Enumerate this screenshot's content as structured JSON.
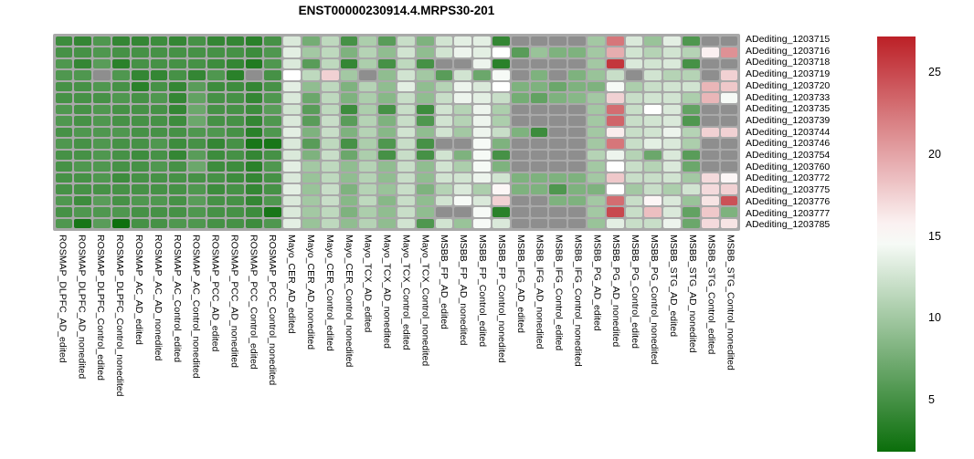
{
  "chart_data": {
    "type": "heatmap",
    "title": "ENST00000230914.4.MRPS30-201",
    "rows": [
      "ADediting_1203715",
      "ADediting_1203716",
      "ADediting_1203718",
      "ADediting_1203719",
      "ADediting_1203720",
      "ADediting_1203733",
      "ADediting_1203735",
      "ADediting_1203739",
      "ADediting_1203744",
      "ADediting_1203746",
      "ADediting_1203754",
      "ADediting_1203760",
      "ADediting_1203772",
      "ADediting_1203775",
      "ADediting_1203776",
      "ADediting_1203777",
      "ADediting_1203785"
    ],
    "columns": [
      "ROSMAP_DLPFC_AD_edited",
      "ROSMAP_DLPFC_AD_nonedited",
      "ROSMAP_DLPFC_Control_edited",
      "ROSMAP_DLPFC_Control_nonedited",
      "ROSMAP_AC_AD_edited",
      "ROSMAP_AC_AD_nonedited",
      "ROSMAP_AC_Control_edited",
      "ROSMAP_AC_Control_nonedited",
      "ROSMAP_PCC_AD_edited",
      "ROSMAP_PCC_AD_nonedited",
      "ROSMAP_PCC_Control_edited",
      "ROSMAP_PCC_Control_nonedited",
      "Mayo_CER_AD_edited",
      "Mayo_CER_AD_nonedited",
      "Mayo_CER_Control_edited",
      "Mayo_CER_Control_nonedited",
      "Mayo_TCX_AD_edited",
      "Mayo_TCX_AD_nonedited",
      "Mayo_TCX_Control_edited",
      "Mayo_TCX_Control_nonedited",
      "MSBB_FP_AD_edited",
      "MSBB_FP_AD_nonedited",
      "MSBB_FP_Control_edited",
      "MSBB_FP_Control_nonedited",
      "MSBB_IFG_AD_edited",
      "MSBB_IFG_AD_nonedited",
      "MSBB_IFG_Control_edited",
      "MSBB_IFG_Control_nonedited",
      "MSBB_PG_AD_edited",
      "MSBB_PG_AD_nonedited",
      "MSBB_PG_Control_edited",
      "MSBB_PG_Control_nonedited",
      "MSBB_STG_AD_edited",
      "MSBB_STG_AD_nonedited",
      "MSBB_STG_Control_edited",
      "MSBB_STG_Control_nonedited"
    ],
    "values": [
      [
        4.5,
        4,
        5.5,
        4,
        4,
        4.5,
        4,
        5,
        4,
        4,
        3.5,
        5,
        13,
        7.5,
        11.5,
        5,
        10.5,
        6,
        12,
        8,
        12.5,
        13.5,
        13.5,
        4,
        null,
        null,
        null,
        null,
        10,
        22.5,
        13,
        9.5,
        13.5,
        5.5,
        null,
        null
      ],
      [
        5,
        5,
        5.5,
        5,
        5,
        5,
        5,
        5,
        5,
        5,
        4.5,
        5.5,
        13.5,
        10,
        11.5,
        8,
        11,
        9,
        12.5,
        9,
        12.5,
        14,
        13.5,
        15,
        6,
        9.5,
        8,
        8,
        10,
        19.5,
        12.5,
        11,
        12.5,
        11,
        15.8,
        21
      ],
      [
        5.5,
        4,
        6,
        3.5,
        5,
        5,
        5,
        5,
        4.5,
        4,
        3,
        5.5,
        13,
        6,
        11.5,
        4,
        10.5,
        5,
        11.5,
        5,
        null,
        null,
        14,
        3.5,
        null,
        null,
        null,
        null,
        10,
        26,
        13,
        12.5,
        13,
        5,
        null,
        null
      ],
      [
        5.5,
        5.5,
        null,
        5.5,
        4,
        4,
        5,
        4,
        5.5,
        3.5,
        null,
        5,
        15,
        11.5,
        17.5,
        10,
        null,
        9,
        12.5,
        10,
        6,
        12.5,
        7,
        14.5,
        null,
        8,
        null,
        8,
        9.5,
        12,
        null,
        12.5,
        11,
        11,
        null,
        17.5
      ],
      [
        5,
        5,
        5.5,
        5,
        3.5,
        5,
        4,
        6,
        4.5,
        4.5,
        4,
        5,
        13.5,
        9,
        11.5,
        8,
        11,
        9,
        13.5,
        9,
        11,
        14,
        13,
        15,
        8,
        8,
        7,
        8,
        8,
        14.5,
        10.5,
        12,
        12.5,
        12.5,
        19,
        18
      ],
      [
        5,
        5,
        5,
        5.5,
        5,
        5.5,
        4,
        6.5,
        5,
        5,
        4,
        5.5,
        13,
        7,
        11.5,
        8,
        10.5,
        8.5,
        12,
        9,
        12,
        14,
        13.5,
        12,
        7.5,
        6.5,
        8,
        8.5,
        10,
        17.5,
        12,
        12.5,
        12.5,
        10.5,
        19,
        14.5
      ],
      [
        5.5,
        5,
        5.5,
        5,
        5,
        5,
        4,
        7,
        5,
        5,
        4.5,
        6,
        12.5,
        6,
        11.5,
        4.5,
        10.5,
        5,
        12,
        4.5,
        12.5,
        11,
        14,
        10.5,
        null,
        null,
        null,
        null,
        10,
        23,
        12,
        15,
        13,
        6.5,
        null,
        null
      ],
      [
        5.5,
        5,
        5.5,
        5,
        5,
        5,
        4.5,
        7,
        5,
        5,
        4,
        5.5,
        13,
        6,
        12,
        6,
        11,
        8,
        12,
        5.5,
        12.5,
        11,
        14,
        10.5,
        null,
        null,
        null,
        null,
        10,
        23.5,
        12,
        12.5,
        13,
        5.5,
        null,
        null
      ],
      [
        5,
        5.5,
        5.5,
        5.5,
        5,
        5,
        5,
        5.5,
        5.5,
        5,
        3.5,
        5.5,
        13.5,
        8,
        12,
        8,
        11,
        8.5,
        12.5,
        9,
        12.5,
        10,
        14,
        12,
        8,
        4.5,
        null,
        null,
        10,
        16,
        12,
        12.5,
        14,
        11,
        17.5,
        17.5
      ],
      [
        5.5,
        5,
        5.5,
        5,
        5,
        5.5,
        4.5,
        5,
        4,
        5,
        2.5,
        2.5,
        13,
        6,
        11.5,
        5,
        10.5,
        5.5,
        12,
        5,
        null,
        null,
        14.5,
        8,
        null,
        null,
        null,
        null,
        10,
        22.5,
        12,
        13.5,
        13,
        10.5,
        null,
        null
      ],
      [
        5,
        5,
        5.5,
        5,
        4.5,
        5,
        4,
        6,
        4.5,
        5,
        4,
        5,
        13,
        8,
        12,
        7,
        10.5,
        5,
        12,
        5,
        12.5,
        8,
        14.5,
        5,
        null,
        null,
        null,
        null,
        11,
        14,
        11,
        7,
        13,
        6,
        null,
        null
      ],
      [
        5,
        5.5,
        5.5,
        5,
        5,
        5.5,
        5,
        7,
        4.5,
        4.5,
        3.5,
        5.5,
        13.5,
        10,
        11.5,
        9,
        11,
        9,
        12,
        9,
        12.5,
        10.5,
        14.5,
        8,
        null,
        null,
        null,
        null,
        10,
        15,
        12,
        11,
        13,
        7,
        null,
        null
      ],
      [
        5,
        5,
        5.5,
        4.5,
        5,
        5,
        5,
        5,
        5,
        4.5,
        4,
        5,
        13,
        9.5,
        11.5,
        9,
        11,
        9,
        12,
        9,
        12.5,
        12.5,
        14,
        12.5,
        8,
        8,
        8,
        8,
        10,
        18,
        12,
        12,
        12.5,
        10,
        17,
        15.5
      ],
      [
        5,
        5,
        5,
        5,
        5,
        5,
        5,
        5.5,
        4.5,
        5,
        4,
        5,
        13.5,
        9.5,
        12,
        8,
        11,
        9.5,
        12,
        8,
        11,
        13,
        10.5,
        15.5,
        8,
        8,
        5.5,
        8,
        8,
        15,
        10,
        12,
        10.5,
        12.5,
        17,
        17.5
      ],
      [
        5.5,
        4.5,
        6,
        5,
        5.5,
        5.5,
        5,
        6,
        5,
        5,
        4,
        5.5,
        13,
        10,
        12,
        8.5,
        11.5,
        8.5,
        12,
        9,
        12.5,
        14.5,
        13,
        17.5,
        null,
        null,
        8,
        8,
        10,
        23,
        12,
        15.5,
        13,
        9.5,
        16.5,
        24.5
      ],
      [
        5,
        5.5,
        5.5,
        5.5,
        5,
        5,
        5,
        5.5,
        5,
        5,
        4.5,
        2.5,
        13,
        10,
        11.5,
        8,
        10.5,
        9,
        12,
        9,
        null,
        null,
        14.5,
        3.5,
        null,
        null,
        null,
        null,
        10,
        25,
        12,
        18.5,
        13,
        6.5,
        18,
        8
      ],
      [
        5.5,
        2.5,
        6,
        2,
        5,
        5,
        5.5,
        5.5,
        5,
        5,
        4.5,
        5.5,
        13.5,
        9.5,
        11.5,
        9,
        11,
        9,
        12.5,
        5.5,
        12.5,
        9.5,
        14.5,
        13,
        null,
        null,
        null,
        null,
        9.5,
        13.5,
        12,
        12,
        14,
        7,
        17,
        16.5
      ]
    ],
    "colorbar": {
      "vmin": 1.8,
      "vmax": 27.2,
      "midpoint": 15,
      "ticks": [
        25,
        20,
        15,
        10,
        5
      ],
      "color_low": "#0b6e0b",
      "color_mid": "#ffffff",
      "color_high": "#bc2027",
      "na_color": "#8e8e8e",
      "grid_color": "#a9a9a9",
      "position": "right"
    }
  }
}
